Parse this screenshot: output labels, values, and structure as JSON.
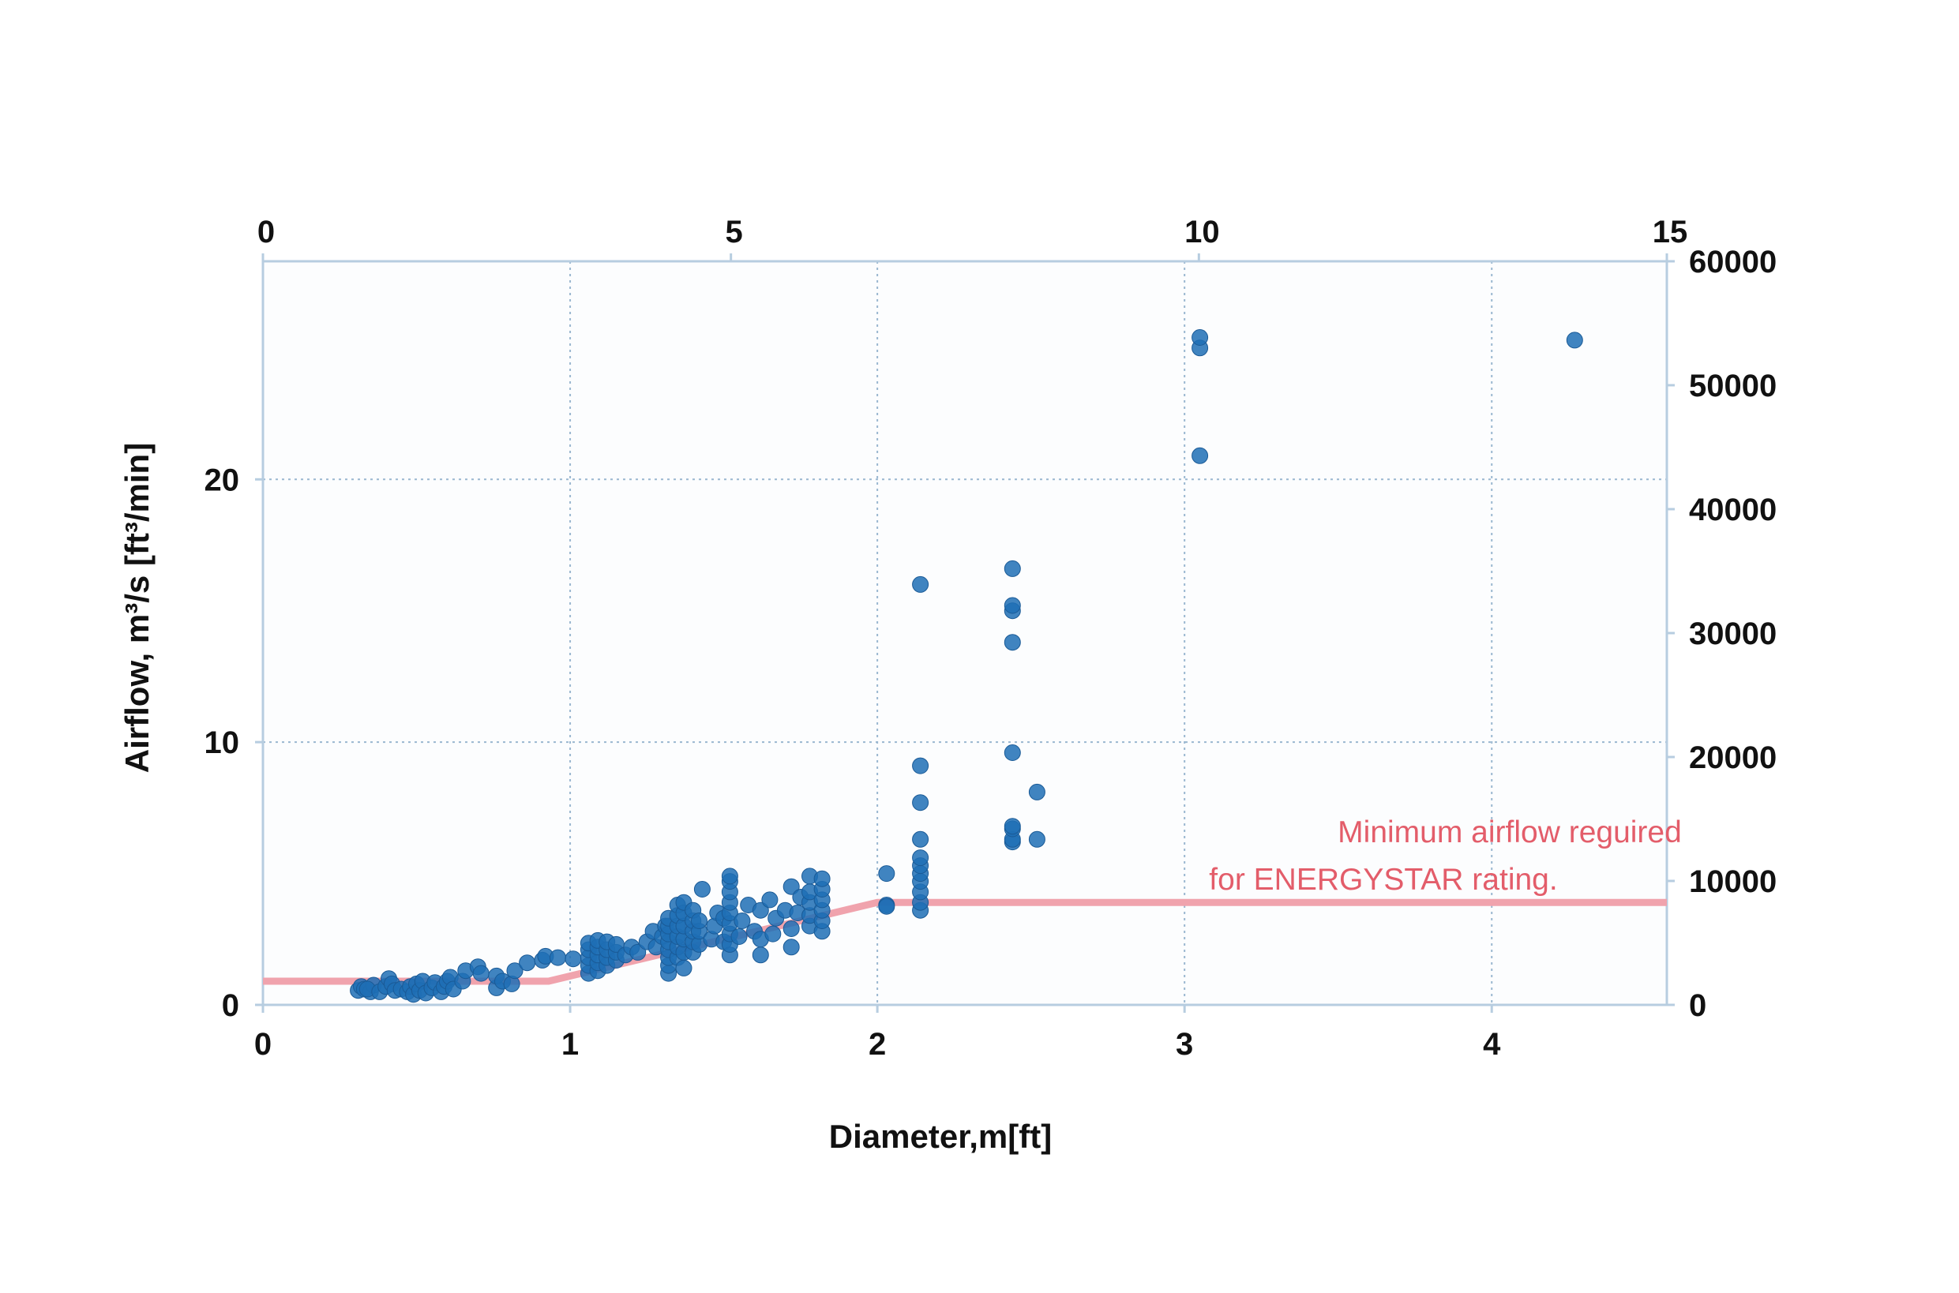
{
  "chart_data": {
    "type": "scatter",
    "ylabel": "Airflow, m³/s [ft³/min]",
    "xlabel": "Diameter,m[ft]",
    "x_bottom": {
      "unit": "m",
      "range": [
        0,
        4.57
      ],
      "ticks": [
        "0",
        "1",
        "2",
        "3",
        "4"
      ]
    },
    "x_top": {
      "unit": "ft",
      "range": [
        0,
        15
      ],
      "ticks": [
        "0",
        "5",
        "10",
        "15"
      ]
    },
    "y_left": {
      "unit": "m³/s",
      "range": [
        0,
        28.3
      ],
      "ticks": [
        "0",
        "10",
        "20"
      ]
    },
    "y_right": {
      "unit": "ft³/min",
      "range": [
        0,
        60000
      ],
      "ticks": [
        "0",
        "10000",
        "20000",
        "30000",
        "40000",
        "50000",
        "60000"
      ]
    },
    "grid": true,
    "colors": {
      "points": "#1f6fb5",
      "threshold": "#f0a3ad",
      "annotation": "#e35d6a",
      "grid": "#9ab7d0",
      "axis": "#b7cde0"
    },
    "threshold": {
      "label": [
        "Minimum airflow reguired",
        "for ENERGYSTAR rating."
      ],
      "points": [
        [
          0,
          0.9
        ],
        [
          0.93,
          0.9
        ],
        [
          2.0,
          3.9
        ],
        [
          4.57,
          3.9
        ]
      ]
    },
    "series": [
      {
        "points": [
          [
            0.31,
            0.55
          ],
          [
            0.32,
            0.7
          ],
          [
            0.33,
            0.6
          ],
          [
            0.35,
            0.5
          ],
          [
            0.36,
            0.75
          ],
          [
            0.34,
            0.6
          ],
          [
            0.38,
            0.5
          ],
          [
            0.4,
            0.7
          ],
          [
            0.41,
            1.0
          ],
          [
            0.42,
            0.8
          ],
          [
            0.43,
            0.55
          ],
          [
            0.45,
            0.6
          ],
          [
            0.47,
            0.5
          ],
          [
            0.48,
            0.7
          ],
          [
            0.49,
            0.4
          ],
          [
            0.5,
            0.8
          ],
          [
            0.51,
            0.55
          ],
          [
            0.52,
            0.9
          ],
          [
            0.53,
            0.45
          ],
          [
            0.55,
            0.65
          ],
          [
            0.56,
            0.85
          ],
          [
            0.58,
            0.5
          ],
          [
            0.59,
            0.7
          ],
          [
            0.6,
            0.9
          ],
          [
            0.61,
            1.05
          ],
          [
            0.62,
            0.6
          ],
          [
            0.65,
            0.9
          ],
          [
            0.66,
            1.3
          ],
          [
            0.7,
            1.45
          ],
          [
            0.71,
            1.2
          ],
          [
            0.76,
            0.65
          ],
          [
            0.76,
            1.1
          ],
          [
            0.78,
            0.9
          ],
          [
            0.81,
            0.8
          ],
          [
            0.82,
            1.3
          ],
          [
            0.86,
            1.6
          ],
          [
            0.91,
            1.7
          ],
          [
            0.92,
            1.85
          ],
          [
            0.96,
            1.8
          ],
          [
            1.01,
            1.75
          ],
          [
            1.06,
            1.2
          ],
          [
            1.06,
            1.5
          ],
          [
            1.06,
            1.8
          ],
          [
            1.06,
            2.1
          ],
          [
            1.06,
            2.35
          ],
          [
            1.09,
            1.3
          ],
          [
            1.09,
            1.6
          ],
          [
            1.09,
            1.9
          ],
          [
            1.09,
            2.2
          ],
          [
            1.09,
            2.45
          ],
          [
            1.12,
            1.5
          ],
          [
            1.12,
            1.8
          ],
          [
            1.12,
            2.1
          ],
          [
            1.12,
            2.4
          ],
          [
            1.15,
            1.7
          ],
          [
            1.15,
            2.0
          ],
          [
            1.15,
            2.3
          ],
          [
            1.18,
            1.9
          ],
          [
            1.2,
            2.2
          ],
          [
            1.22,
            2.0
          ],
          [
            1.25,
            2.4
          ],
          [
            1.27,
            2.8
          ],
          [
            1.28,
            2.2
          ],
          [
            1.3,
            2.6
          ],
          [
            1.31,
            3.0
          ],
          [
            1.32,
            1.2
          ],
          [
            1.32,
            1.5
          ],
          [
            1.32,
            1.8
          ],
          [
            1.32,
            2.1
          ],
          [
            1.32,
            2.4
          ],
          [
            1.32,
            2.7
          ],
          [
            1.32,
            3.0
          ],
          [
            1.32,
            3.3
          ],
          [
            1.35,
            1.8
          ],
          [
            1.35,
            2.2
          ],
          [
            1.35,
            2.6
          ],
          [
            1.35,
            3.0
          ],
          [
            1.35,
            3.4
          ],
          [
            1.35,
            3.8
          ],
          [
            1.37,
            1.4
          ],
          [
            1.37,
            2.0
          ],
          [
            1.37,
            2.5
          ],
          [
            1.37,
            3.0
          ],
          [
            1.37,
            3.5
          ],
          [
            1.37,
            3.9
          ],
          [
            1.4,
            2.0
          ],
          [
            1.4,
            2.4
          ],
          [
            1.4,
            2.8
          ],
          [
            1.4,
            3.2
          ],
          [
            1.4,
            3.6
          ],
          [
            1.42,
            2.3
          ],
          [
            1.42,
            2.8
          ],
          [
            1.42,
            3.2
          ],
          [
            1.43,
            4.4
          ],
          [
            1.46,
            2.5
          ],
          [
            1.47,
            3.0
          ],
          [
            1.48,
            3.5
          ],
          [
            1.5,
            2.4
          ],
          [
            1.5,
            3.3
          ],
          [
            1.52,
            1.9
          ],
          [
            1.52,
            2.3
          ],
          [
            1.52,
            2.7
          ],
          [
            1.52,
            3.1
          ],
          [
            1.52,
            3.5
          ],
          [
            1.52,
            3.9
          ],
          [
            1.52,
            4.3
          ],
          [
            1.52,
            4.7
          ],
          [
            1.52,
            4.9
          ],
          [
            1.55,
            2.6
          ],
          [
            1.56,
            3.2
          ],
          [
            1.58,
            3.8
          ],
          [
            1.6,
            2.8
          ],
          [
            1.62,
            1.9
          ],
          [
            1.62,
            2.5
          ],
          [
            1.62,
            3.6
          ],
          [
            1.65,
            4.0
          ],
          [
            1.66,
            2.7
          ],
          [
            1.67,
            3.3
          ],
          [
            1.7,
            3.6
          ],
          [
            1.72,
            2.2
          ],
          [
            1.72,
            2.9
          ],
          [
            1.72,
            4.5
          ],
          [
            1.74,
            3.5
          ],
          [
            1.75,
            4.1
          ],
          [
            1.78,
            3.0
          ],
          [
            1.78,
            3.4
          ],
          [
            1.78,
            3.9
          ],
          [
            1.78,
            4.3
          ],
          [
            1.78,
            4.9
          ],
          [
            1.82,
            2.8
          ],
          [
            1.82,
            3.2
          ],
          [
            1.82,
            3.6
          ],
          [
            1.82,
            4.0
          ],
          [
            1.82,
            4.4
          ],
          [
            1.82,
            4.8
          ],
          [
            2.03,
            3.8
          ],
          [
            2.03,
            5.0
          ],
          [
            2.03,
            3.75
          ],
          [
            2.14,
            3.6
          ],
          [
            2.14,
            3.9
          ],
          [
            2.14,
            4.3
          ],
          [
            2.14,
            4.7
          ],
          [
            2.14,
            5.0
          ],
          [
            2.14,
            5.3
          ],
          [
            2.14,
            5.6
          ],
          [
            2.14,
            6.3
          ],
          [
            2.14,
            7.7
          ],
          [
            2.14,
            9.1
          ],
          [
            2.14,
            16.0
          ],
          [
            2.44,
            6.2
          ],
          [
            2.44,
            6.3
          ],
          [
            2.44,
            6.7
          ],
          [
            2.44,
            6.8
          ],
          [
            2.44,
            9.6
          ],
          [
            2.44,
            13.8
          ],
          [
            2.44,
            15.0
          ],
          [
            2.44,
            15.2
          ],
          [
            2.44,
            16.6
          ],
          [
            2.52,
            6.3
          ],
          [
            2.52,
            8.1
          ],
          [
            3.05,
            20.9
          ],
          [
            3.05,
            25.0
          ],
          [
            3.05,
            25.4
          ],
          [
            4.27,
            25.3
          ]
        ]
      }
    ]
  }
}
